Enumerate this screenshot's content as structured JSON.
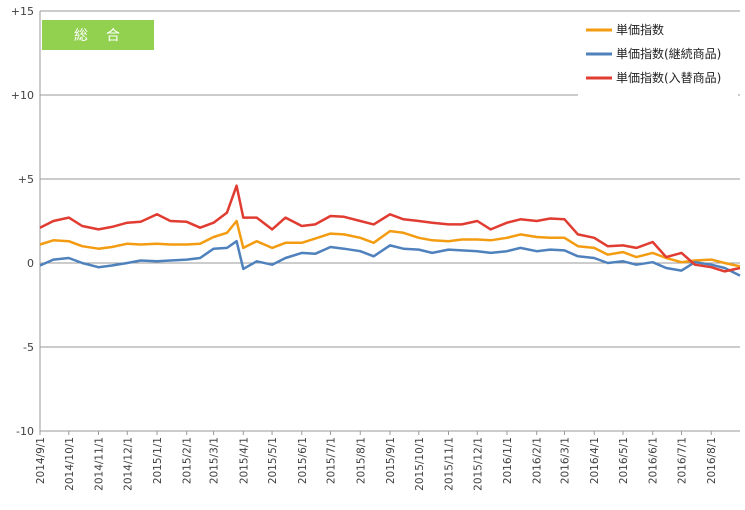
{
  "chart_data": {
    "type": "line",
    "title": "総　合",
    "title_box_color": "#92D050",
    "ylim": [
      -10,
      15
    ],
    "yticks": [
      {
        "value": 15,
        "label": "+15"
      },
      {
        "value": 10,
        "label": "+10"
      },
      {
        "value": 5,
        "label": "+5"
      },
      {
        "value": 0,
        "label": "0"
      },
      {
        "value": -5,
        "label": "-5"
      },
      {
        "value": -10,
        "label": "-10"
      }
    ],
    "x_start": "2014-09-01",
    "x_end": "2016-08-31",
    "x_ticks": [
      "2014/9/1",
      "2014/10/1",
      "2014/11/1",
      "2014/12/1",
      "2015/1/1",
      "2015/2/1",
      "2015/3/1",
      "2015/4/1",
      "2015/5/1",
      "2015/6/1",
      "2015/7/1",
      "2015/8/1",
      "2015/9/1",
      "2015/10/1",
      "2015/11/1",
      "2015/12/1",
      "2016/1/1",
      "2016/2/1",
      "2016/3/1",
      "2016/4/1",
      "2016/5/1",
      "2016/6/1",
      "2016/7/1",
      "2016/8/1"
    ],
    "grid": "horizontal",
    "legend_position": "top-right",
    "series": [
      {
        "name": "単価指数",
        "color": "#F39C12",
        "points": [
          [
            "2014-09-01",
            1.1
          ],
          [
            "2014-09-15",
            1.35
          ],
          [
            "2014-10-01",
            1.3
          ],
          [
            "2014-10-15",
            1.0
          ],
          [
            "2014-11-01",
            0.85
          ],
          [
            "2014-11-15",
            0.95
          ],
          [
            "2014-12-01",
            1.15
          ],
          [
            "2014-12-15",
            1.1
          ],
          [
            "2015-01-01",
            1.15
          ],
          [
            "2015-01-15",
            1.1
          ],
          [
            "2015-02-01",
            1.1
          ],
          [
            "2015-02-15",
            1.15
          ],
          [
            "2015-03-01",
            1.55
          ],
          [
            "2015-03-15",
            1.8
          ],
          [
            "2015-03-25",
            2.5
          ],
          [
            "2015-04-01",
            0.9
          ],
          [
            "2015-04-15",
            1.3
          ],
          [
            "2015-05-01",
            0.9
          ],
          [
            "2015-05-15",
            1.2
          ],
          [
            "2015-06-01",
            1.2
          ],
          [
            "2015-06-15",
            1.45
          ],
          [
            "2015-07-01",
            1.75
          ],
          [
            "2015-07-15",
            1.7
          ],
          [
            "2015-08-01",
            1.5
          ],
          [
            "2015-08-15",
            1.2
          ],
          [
            "2015-09-01",
            1.9
          ],
          [
            "2015-09-15",
            1.8
          ],
          [
            "2015-10-01",
            1.5
          ],
          [
            "2015-10-15",
            1.35
          ],
          [
            "2015-11-01",
            1.3
          ],
          [
            "2015-11-15",
            1.4
          ],
          [
            "2015-12-01",
            1.4
          ],
          [
            "2015-12-15",
            1.35
          ],
          [
            "2016-01-01",
            1.5
          ],
          [
            "2016-01-15",
            1.7
          ],
          [
            "2016-02-01",
            1.55
          ],
          [
            "2016-02-15",
            1.5
          ],
          [
            "2016-03-01",
            1.5
          ],
          [
            "2016-03-15",
            1.0
          ],
          [
            "2016-04-01",
            0.9
          ],
          [
            "2016-04-15",
            0.5
          ],
          [
            "2016-05-01",
            0.65
          ],
          [
            "2016-05-15",
            0.35
          ],
          [
            "2016-06-01",
            0.6
          ],
          [
            "2016-06-15",
            0.3
          ],
          [
            "2016-07-01",
            0.05
          ],
          [
            "2016-07-15",
            0.15
          ],
          [
            "2016-08-01",
            0.2
          ],
          [
            "2016-08-15",
            0.0
          ],
          [
            "2016-08-31",
            -0.2
          ]
        ]
      },
      {
        "name": "単価指数(継続商品)",
        "color": "#4F81BD",
        "points": [
          [
            "2014-09-01",
            -0.15
          ],
          [
            "2014-09-15",
            0.2
          ],
          [
            "2014-10-01",
            0.3
          ],
          [
            "2014-10-15",
            0.0
          ],
          [
            "2014-11-01",
            -0.25
          ],
          [
            "2014-11-15",
            -0.15
          ],
          [
            "2014-12-01",
            0.0
          ],
          [
            "2014-12-15",
            0.15
          ],
          [
            "2015-01-01",
            0.1
          ],
          [
            "2015-01-15",
            0.15
          ],
          [
            "2015-02-01",
            0.2
          ],
          [
            "2015-02-15",
            0.3
          ],
          [
            "2015-03-01",
            0.85
          ],
          [
            "2015-03-15",
            0.9
          ],
          [
            "2015-03-25",
            1.3
          ],
          [
            "2015-04-01",
            -0.35
          ],
          [
            "2015-04-15",
            0.1
          ],
          [
            "2015-05-01",
            -0.1
          ],
          [
            "2015-05-15",
            0.3
          ],
          [
            "2015-06-01",
            0.6
          ],
          [
            "2015-06-15",
            0.55
          ],
          [
            "2015-07-01",
            0.95
          ],
          [
            "2015-07-15",
            0.85
          ],
          [
            "2015-08-01",
            0.7
          ],
          [
            "2015-08-15",
            0.4
          ],
          [
            "2015-09-01",
            1.05
          ],
          [
            "2015-09-15",
            0.85
          ],
          [
            "2015-10-01",
            0.8
          ],
          [
            "2015-10-15",
            0.6
          ],
          [
            "2015-11-01",
            0.8
          ],
          [
            "2015-11-15",
            0.75
          ],
          [
            "2015-12-01",
            0.7
          ],
          [
            "2015-12-15",
            0.6
          ],
          [
            "2016-01-01",
            0.7
          ],
          [
            "2016-01-15",
            0.9
          ],
          [
            "2016-02-01",
            0.7
          ],
          [
            "2016-02-15",
            0.8
          ],
          [
            "2016-03-01",
            0.75
          ],
          [
            "2016-03-15",
            0.4
          ],
          [
            "2016-04-01",
            0.3
          ],
          [
            "2016-04-15",
            0.0
          ],
          [
            "2016-05-01",
            0.1
          ],
          [
            "2016-05-15",
            -0.1
          ],
          [
            "2016-06-01",
            0.05
          ],
          [
            "2016-06-15",
            -0.3
          ],
          [
            "2016-07-01",
            -0.45
          ],
          [
            "2016-07-15",
            0.05
          ],
          [
            "2016-08-01",
            -0.1
          ],
          [
            "2016-08-15",
            -0.3
          ],
          [
            "2016-08-31",
            -0.75
          ]
        ]
      },
      {
        "name": "単価指数(入替商品)",
        "color": "#E03C31",
        "points": [
          [
            "2014-09-01",
            2.1
          ],
          [
            "2014-09-15",
            2.5
          ],
          [
            "2014-10-01",
            2.7
          ],
          [
            "2014-10-15",
            2.2
          ],
          [
            "2014-11-01",
            2.0
          ],
          [
            "2014-11-15",
            2.15
          ],
          [
            "2014-12-01",
            2.4
          ],
          [
            "2014-12-15",
            2.45
          ],
          [
            "2015-01-01",
            2.9
          ],
          [
            "2015-01-15",
            2.5
          ],
          [
            "2015-02-01",
            2.45
          ],
          [
            "2015-02-15",
            2.1
          ],
          [
            "2015-03-01",
            2.4
          ],
          [
            "2015-03-15",
            3.0
          ],
          [
            "2015-03-25",
            4.6
          ],
          [
            "2015-04-01",
            2.7
          ],
          [
            "2015-04-15",
            2.7
          ],
          [
            "2015-05-01",
            2.0
          ],
          [
            "2015-05-15",
            2.7
          ],
          [
            "2015-06-01",
            2.2
          ],
          [
            "2015-06-15",
            2.3
          ],
          [
            "2015-07-01",
            2.8
          ],
          [
            "2015-07-15",
            2.75
          ],
          [
            "2015-08-01",
            2.5
          ],
          [
            "2015-08-15",
            2.3
          ],
          [
            "2015-09-01",
            2.9
          ],
          [
            "2015-09-15",
            2.6
          ],
          [
            "2015-10-01",
            2.5
          ],
          [
            "2015-10-15",
            2.4
          ],
          [
            "2015-11-01",
            2.3
          ],
          [
            "2015-11-15",
            2.3
          ],
          [
            "2015-12-01",
            2.5
          ],
          [
            "2015-12-15",
            2.0
          ],
          [
            "2016-01-01",
            2.4
          ],
          [
            "2016-01-15",
            2.6
          ],
          [
            "2016-02-01",
            2.5
          ],
          [
            "2016-02-15",
            2.65
          ],
          [
            "2016-03-01",
            2.6
          ],
          [
            "2016-03-15",
            1.7
          ],
          [
            "2016-04-01",
            1.5
          ],
          [
            "2016-04-15",
            1.0
          ],
          [
            "2016-05-01",
            1.05
          ],
          [
            "2016-05-15",
            0.9
          ],
          [
            "2016-06-01",
            1.25
          ],
          [
            "2016-06-15",
            0.35
          ],
          [
            "2016-07-01",
            0.6
          ],
          [
            "2016-07-15",
            -0.1
          ],
          [
            "2016-08-01",
            -0.25
          ],
          [
            "2016-08-15",
            -0.5
          ],
          [
            "2016-08-31",
            -0.3
          ]
        ]
      }
    ]
  }
}
